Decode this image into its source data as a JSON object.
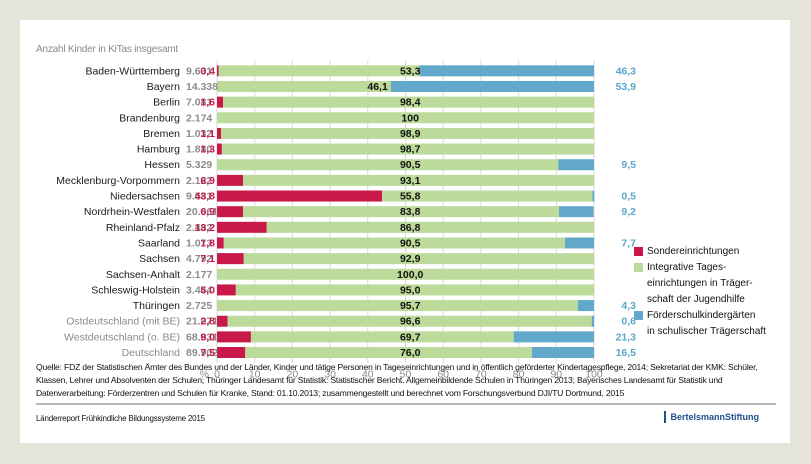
{
  "chart_data": {
    "type": "bar",
    "orientation": "horizontal-stacked-100",
    "subtitle": "Anzahl Kinder in KiTas insgesamt",
    "xlabel": "%",
    "xlim": [
      0,
      100
    ],
    "xticks": [
      0,
      10,
      20,
      30,
      40,
      50,
      60,
      70,
      80,
      90,
      100
    ],
    "grid": true,
    "legend_position": "right",
    "series_names": [
      "Sondereinrichtungen",
      "Integrative Tageseinrichtungen in Trägerschaft der Jugendhilfe",
      "Förderschulkindergärten in schulischer Trägerschaft"
    ],
    "colors": {
      "sonder": "#c8194a",
      "integ": "#bcdb9a",
      "foerder": "#62a8ca"
    },
    "rows": [
      {
        "land": "Baden-Württemberg",
        "count": "9.631",
        "sonder": 0.4,
        "sonder_label": "0,4",
        "integ": 53.3,
        "integ_label": "53,3",
        "foerder": 46.3,
        "foerder_label": "46,3",
        "aggregate": false
      },
      {
        "land": "Bayern",
        "count": "14.338",
        "sonder": 0,
        "sonder_label": "",
        "integ": 46.1,
        "integ_label": "46,1",
        "foerder": 53.9,
        "foerder_label": "53,9",
        "aggregate": false
      },
      {
        "land": "Berlin",
        "count": "7.081",
        "sonder": 1.6,
        "sonder_label": "1,6",
        "integ": 98.4,
        "integ_label": "98,4",
        "foerder": 0,
        "foerder_label": "",
        "aggregate": false
      },
      {
        "land": "Brandenburg",
        "count": "2.174",
        "sonder": 0,
        "sonder_label": "",
        "integ": 100,
        "integ_label": "100",
        "foerder": 0,
        "foerder_label": "",
        "aggregate": false
      },
      {
        "land": "Bremen",
        "count": "1.032",
        "sonder": 1.1,
        "sonder_label": "1,1",
        "integ": 98.9,
        "integ_label": "98,9",
        "foerder": 0,
        "foerder_label": "",
        "aggregate": false
      },
      {
        "land": "Hamburg",
        "count": "1.880",
        "sonder": 1.3,
        "sonder_label": "1,3",
        "integ": 98.7,
        "integ_label": "98,7",
        "foerder": 0,
        "foerder_label": "",
        "aggregate": false
      },
      {
        "land": "Hessen",
        "count": "5.329",
        "sonder": 0,
        "sonder_label": "",
        "integ": 90.5,
        "integ_label": "90,5",
        "foerder": 9.5,
        "foerder_label": "9,5",
        "aggregate": false
      },
      {
        "land": "Mecklenburg-Vorpommern",
        "count": "2.122",
        "sonder": 6.9,
        "sonder_label": "6,9",
        "integ": 93.1,
        "integ_label": "93,1",
        "foerder": 0,
        "foerder_label": "",
        "aggregate": false
      },
      {
        "land": "Niedersachsen",
        "count": "9.581",
        "sonder": 43.8,
        "sonder_label": "43,8",
        "integ": 55.8,
        "integ_label": "55,8",
        "foerder": 0.5,
        "foerder_label": "0,5",
        "aggregate": false
      },
      {
        "land": "Nordrhein-Westfalen",
        "count": "20.061",
        "sonder": 6.9,
        "sonder_label": "6,9",
        "integ": 83.8,
        "integ_label": "83,8",
        "foerder": 9.2,
        "foerder_label": "9,2",
        "aggregate": false
      },
      {
        "land": "Rheinland-Pfalz",
        "count": "2.462",
        "sonder": 13.2,
        "sonder_label": "13,2",
        "integ": 86.8,
        "integ_label": "86,8",
        "foerder": 0,
        "foerder_label": "",
        "aggregate": false
      },
      {
        "land": "Saarland",
        "count": "1.073",
        "sonder": 1.8,
        "sonder_label": "1,8",
        "integ": 90.5,
        "integ_label": "90,5",
        "foerder": 7.7,
        "foerder_label": "7,7",
        "aggregate": false
      },
      {
        "land": "Sachsen",
        "count": "4.792",
        "sonder": 7.1,
        "sonder_label": "7,1",
        "integ": 92.9,
        "integ_label": "92,9",
        "foerder": 0,
        "foerder_label": "",
        "aggregate": false
      },
      {
        "land": "Sachsen-Anhalt",
        "count": "2.177",
        "sonder": 0,
        "sonder_label": "",
        "integ": 100.0,
        "integ_label": "100,0",
        "foerder": 0,
        "foerder_label": "",
        "aggregate": false
      },
      {
        "land": "Schleswig-Holstein",
        "count": "3.444",
        "sonder": 5.0,
        "sonder_label": "5,0",
        "integ": 95.0,
        "integ_label": "95,0",
        "foerder": 0,
        "foerder_label": "",
        "aggregate": false
      },
      {
        "land": "Thüringen",
        "count": "2.725",
        "sonder": 0,
        "sonder_label": "",
        "integ": 95.7,
        "integ_label": "95,7",
        "foerder": 4.3,
        "foerder_label": "4,3",
        "aggregate": false
      },
      {
        "land": "Ostdeutschland (mit BE)",
        "count": "21.071",
        "sonder": 2.8,
        "sonder_label": "2,8",
        "integ": 96.6,
        "integ_label": "96,6",
        "foerder": 0.6,
        "foerder_label": "0,6",
        "aggregate": true
      },
      {
        "land": "Westdeutschland (o. BE)",
        "count": "68.831",
        "sonder": 9.0,
        "sonder_label": "9,0",
        "integ": 69.7,
        "integ_label": "69,7",
        "foerder": 21.3,
        "foerder_label": "21,3",
        "aggregate": true
      },
      {
        "land": "Deutschland",
        "count": "89.902",
        "sonder": 7.5,
        "sonder_label": "7,5",
        "integ": 76.0,
        "integ_label": "76,0",
        "foerder": 16.5,
        "foerder_label": "16,5",
        "aggregate": true
      }
    ]
  },
  "legend": {
    "items": [
      {
        "lines": [
          "Sondereinrichtungen"
        ],
        "color": "#c8194a"
      },
      {
        "lines": [
          "Integrative Tages-",
          "einrichtungen in Träger-",
          "schaft der Jugendhilfe"
        ],
        "color": "#bcdb9a"
      },
      {
        "lines": [
          "Förderschulkindergärten",
          "in schulischer Trägerschaft"
        ],
        "color": "#62a8ca"
      }
    ]
  },
  "source": {
    "text": "Quelle: FDZ der Statistischen Ämter des Bundes und der Länder, Kinder und tätige Personen in Tageseinrichtungen und in öffentlich geförderter Kindertagespflege, 2014; Sekretariat der KMK: Schüler, Klassen, Lehrer und Absolventen der Schulen; Thüringer Landesamt für Statistik: Statistischer Bericht. Allgemeinbildende Schulen in Thüringen 2013; Bayerisches Landesamt für Statistik und Datenverarbeitung: Förderzentren und Schulen für Kranke, Stand: 01.10.2013; zusammengestellt und berechnet vom Forschungsverbund DJI/TU Dortmund, 2015"
  },
  "footer": {
    "report": "Länderreport Frühkindliche Bildungssysteme 2015",
    "brand": "BertelsmannStiftung"
  }
}
